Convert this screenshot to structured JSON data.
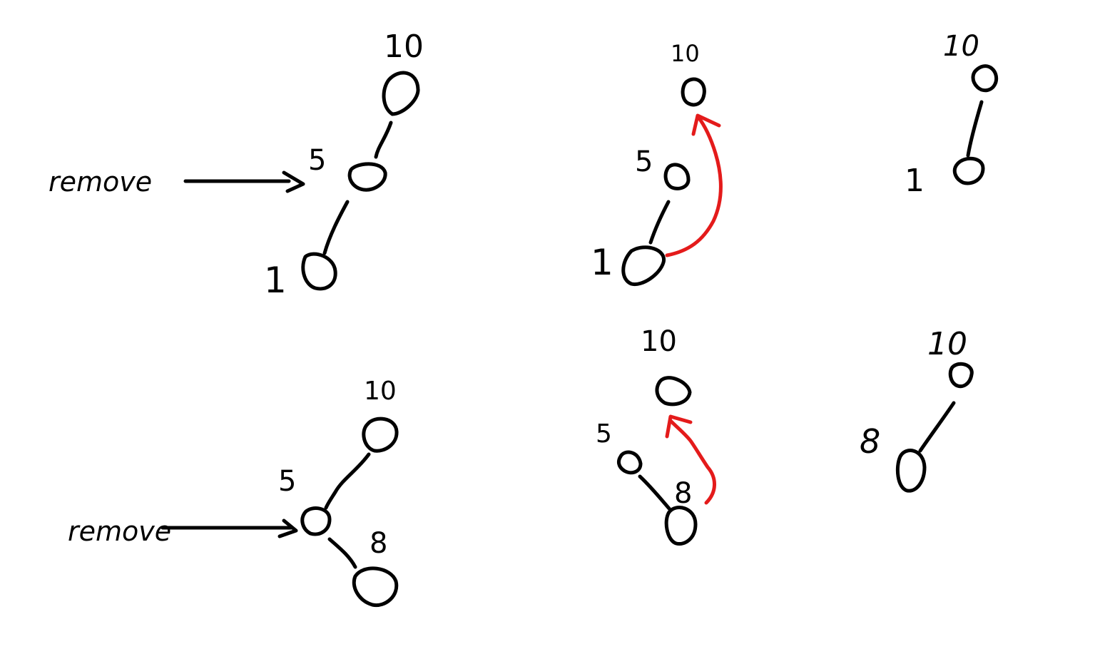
{
  "colors": {
    "ink": "#000000",
    "highlight": "#e41b1b",
    "background": "#ffffff"
  },
  "example1": {
    "annotation": "remove",
    "before": {
      "root": "10",
      "target": "5",
      "child": "1"
    },
    "during": {
      "root": "10",
      "target": "5",
      "child": "1"
    },
    "after": {
      "root": "10",
      "child": "1"
    }
  },
  "example2": {
    "annotation": "remove",
    "before": {
      "root": "10",
      "target": "5",
      "child": "8"
    },
    "during": {
      "root": "10",
      "target": "5",
      "child": "8"
    },
    "after": {
      "root": "10",
      "child": "8"
    }
  }
}
